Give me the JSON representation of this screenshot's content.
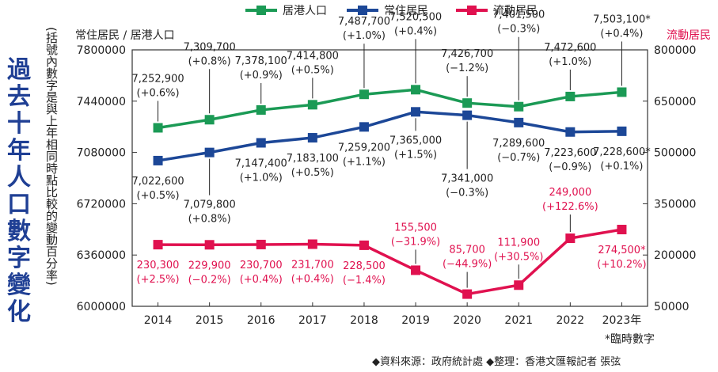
{
  "title": "過去十年人口數字變化",
  "subtitle": "(括號內數字是與上年相同時點比較的變動百分率)",
  "source_note": "◆資料來源：政府統計處 ◆整理：香港文匯報記者 張弦",
  "provisional_note": "*臨時數字",
  "colors": {
    "green": "#1b9a55",
    "blue": "#1c4797",
    "red": "#e0114f",
    "title": "#1f3f94"
  },
  "chart_data": {
    "type": "line",
    "title": "過去十年人口數字變化",
    "categories": [
      "2014",
      "2015",
      "2016",
      "2017",
      "2018",
      "2019",
      "2020",
      "2021",
      "2022",
      "2023年"
    ],
    "left_axis": {
      "title": "常住居民 / 居港人口",
      "ylim": [
        6000000,
        7800000
      ],
      "ticks": [
        "7800000",
        "7440000",
        "7080000",
        "6720000",
        "6360000",
        "6000000"
      ]
    },
    "right_axis": {
      "title": "流動居民",
      "ylim": [
        50000,
        800000
      ],
      "ticks": [
        "800000",
        "650000",
        "500000",
        "350000",
        "200000",
        "50000"
      ]
    },
    "legend": {
      "position": "top",
      "items": [
        "居港人口",
        "常住居民",
        "流動居民"
      ]
    },
    "series": [
      {
        "name": "居港人口",
        "axis": "left",
        "color": "#1b9a55",
        "marker": "square",
        "values": [
          7252900,
          7309700,
          7378100,
          7414800,
          7487700,
          7520500,
          7426700,
          7401500,
          7472600,
          7503100
        ],
        "labels": [
          "7,252,900",
          "7,309,700",
          "7,378,100",
          "7,414,800",
          "7,487,700",
          "7,520,500",
          "7,426,700",
          "7,401,500",
          "7,472,600",
          "7,503,100*"
        ],
        "changes": [
          "(+0.6%)",
          "(+0.8%)",
          "(+0.9%)",
          "(+0.5%)",
          "(+1.0%)",
          "(+0.4%)",
          "(−1.2%)",
          "(−0.3%)",
          "(+1.0%)",
          "(+0.4%)"
        ]
      },
      {
        "name": "常住居民",
        "axis": "left",
        "color": "#1c4797",
        "marker": "square",
        "values": [
          7022600,
          7079800,
          7147400,
          7183100,
          7259200,
          7365000,
          7341000,
          7289600,
          7223600,
          7228600
        ],
        "labels": [
          "7,022,600",
          "7,079,800",
          "7,147,400",
          "7,183,100",
          "7,259,200",
          "7,365,000",
          "7,341,000",
          "7,289,600",
          "7,223,600",
          "7,228,600*"
        ],
        "changes": [
          "(+0.5%)",
          "(+0.8%)",
          "(+1.0%)",
          "(+0.5%)",
          "(+1.1%)",
          "(+1.5%)",
          "(−0.3%)",
          "(−0.7%)",
          "(−0.9%)",
          "(+0.1%)"
        ]
      },
      {
        "name": "流動居民",
        "axis": "right",
        "color": "#e0114f",
        "marker": "square",
        "values": [
          230300,
          229900,
          230700,
          231700,
          228500,
          155500,
          85700,
          111900,
          249000,
          274500
        ],
        "labels": [
          "230,300",
          "229,900",
          "230,700",
          "231,700",
          "228,500",
          "155,500",
          "85,700",
          "111,900",
          "249,000",
          "274,500*"
        ],
        "changes": [
          "(+2.5%)",
          "(−0.2%)",
          "(+0.4%)",
          "(+0.4%)",
          "(−1.4%)",
          "(−31.9%)",
          "(−44.9%)",
          "(+30.5%)",
          "(+122.6%)",
          "(+10.2%)"
        ]
      }
    ]
  }
}
